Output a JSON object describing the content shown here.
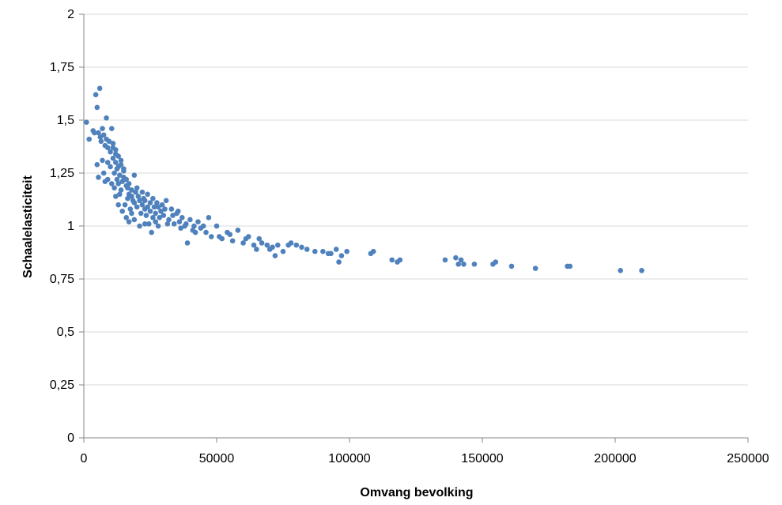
{
  "chart_data": {
    "type": "scatter",
    "title": "",
    "xlabel": "Omvang  bevolking",
    "ylabel": "Schaalelasticiteit",
    "xlim": [
      0,
      250000
    ],
    "ylim": [
      0,
      2
    ],
    "x_ticks": [
      0,
      50000,
      100000,
      150000,
      200000,
      250000
    ],
    "x_tick_labels": [
      "0",
      "50000",
      "100000",
      "150000",
      "200000",
      "250000"
    ],
    "y_ticks": [
      0,
      0.25,
      0.5,
      0.75,
      1,
      1.25,
      1.5,
      1.75,
      2
    ],
    "y_tick_labels": [
      "0",
      "0,25",
      "0,5",
      "0,75",
      "1",
      "1,25",
      "1,5",
      "1,75",
      "2"
    ],
    "grid": "horizontal",
    "legend": "none",
    "marker_color": "#4f81bd",
    "series": [
      {
        "points": [
          [
            1000,
            1.49
          ],
          [
            2000,
            1.41
          ],
          [
            4000,
            1.44
          ],
          [
            4500,
            1.62
          ],
          [
            5000,
            1.56
          ],
          [
            6000,
            1.65
          ],
          [
            6200,
            1.42
          ],
          [
            7000,
            1.46
          ],
          [
            8500,
            1.51
          ],
          [
            9000,
            1.37
          ],
          [
            10500,
            1.46
          ],
          [
            5000,
            1.29
          ],
          [
            5500,
            1.23
          ],
          [
            7000,
            1.31
          ],
          [
            8000,
            1.21
          ],
          [
            11000,
            1.37
          ],
          [
            12000,
            1.34
          ],
          [
            9000,
            1.3
          ],
          [
            10000,
            1.28
          ],
          [
            11500,
            1.25
          ],
          [
            12500,
            1.22
          ],
          [
            13000,
            1.2
          ],
          [
            14000,
            1.17
          ],
          [
            15000,
            1.23
          ],
          [
            16000,
            1.19
          ],
          [
            17000,
            1.15
          ],
          [
            18000,
            1.14
          ],
          [
            19000,
            1.24
          ],
          [
            20000,
            1.18
          ],
          [
            21000,
            1.12
          ],
          [
            22000,
            1.1
          ],
          [
            23000,
            1.08
          ],
          [
            24000,
            1.15
          ],
          [
            25000,
            1.11
          ],
          [
            26000,
            1.13
          ],
          [
            27000,
            1.06
          ],
          [
            28000,
            1.09
          ],
          [
            29000,
            1.07
          ],
          [
            30000,
            1.05
          ],
          [
            31000,
            1.12
          ],
          [
            32000,
            1.03
          ],
          [
            33000,
            1.08
          ],
          [
            34000,
            1.01
          ],
          [
            35000,
            1.06
          ],
          [
            36000,
            1.02
          ],
          [
            37000,
            1.04
          ],
          [
            38000,
            1.0
          ],
          [
            39000,
            0.92
          ],
          [
            40000,
            1.03
          ],
          [
            41000,
            0.98
          ],
          [
            42000,
            0.97
          ],
          [
            43000,
            1.02
          ],
          [
            44000,
            0.99
          ],
          [
            45000,
            1.0
          ],
          [
            46000,
            0.97
          ],
          [
            47000,
            1.04
          ],
          [
            48000,
            0.95
          ],
          [
            50000,
            1.0
          ],
          [
            51000,
            0.95
          ],
          [
            52000,
            0.94
          ],
          [
            54000,
            0.97
          ],
          [
            55000,
            0.96
          ],
          [
            56000,
            0.93
          ],
          [
            58000,
            0.98
          ],
          [
            60000,
            0.92
          ],
          [
            61000,
            0.94
          ],
          [
            62000,
            0.95
          ],
          [
            64000,
            0.91
          ],
          [
            65000,
            0.89
          ],
          [
            66000,
            0.94
          ],
          [
            67000,
            0.92
          ],
          [
            69000,
            0.91
          ],
          [
            70000,
            0.89
          ],
          [
            71000,
            0.9
          ],
          [
            72000,
            0.86
          ],
          [
            73000,
            0.91
          ],
          [
            75000,
            0.88
          ],
          [
            77000,
            0.91
          ],
          [
            78000,
            0.92
          ],
          [
            80000,
            0.91
          ],
          [
            82000,
            0.9
          ],
          [
            84000,
            0.89
          ],
          [
            87000,
            0.88
          ],
          [
            90000,
            0.88
          ],
          [
            92000,
            0.87
          ],
          [
            93000,
            0.87
          ],
          [
            95000,
            0.89
          ],
          [
            96000,
            0.83
          ],
          [
            97000,
            0.86
          ],
          [
            99000,
            0.88
          ],
          [
            108000,
            0.87
          ],
          [
            109000,
            0.88
          ],
          [
            116000,
            0.84
          ],
          [
            118000,
            0.83
          ],
          [
            119000,
            0.84
          ],
          [
            136000,
            0.84
          ],
          [
            140000,
            0.85
          ],
          [
            141000,
            0.82
          ],
          [
            142000,
            0.84
          ],
          [
            143000,
            0.82
          ],
          [
            147000,
            0.82
          ],
          [
            154000,
            0.82
          ],
          [
            155000,
            0.83
          ],
          [
            161000,
            0.81
          ],
          [
            170000,
            0.8
          ],
          [
            182000,
            0.81
          ],
          [
            183000,
            0.81
          ],
          [
            202000,
            0.79
          ],
          [
            210000,
            0.79
          ],
          [
            8000,
            1.38
          ],
          [
            9500,
            1.4
          ],
          [
            10000,
            1.35
          ],
          [
            11000,
            1.32
          ],
          [
            12000,
            1.3
          ],
          [
            13000,
            1.28
          ],
          [
            14000,
            1.31
          ],
          [
            15000,
            1.26
          ],
          [
            16000,
            1.22
          ],
          [
            13500,
            1.15
          ],
          [
            15500,
            1.1
          ],
          [
            17500,
            1.08
          ],
          [
            18500,
            1.12
          ],
          [
            19500,
            1.16
          ],
          [
            20500,
            1.14
          ],
          [
            21500,
            1.06
          ],
          [
            22500,
            1.13
          ],
          [
            23500,
            1.05
          ],
          [
            24500,
            1.01
          ],
          [
            25500,
            0.97
          ],
          [
            26500,
            1.09
          ],
          [
            27500,
            1.11
          ],
          [
            28500,
            1.04
          ],
          [
            29500,
            1.1
          ],
          [
            30500,
            1.08
          ],
          [
            31500,
            1.01
          ],
          [
            33500,
            1.05
          ],
          [
            35500,
            1.07
          ],
          [
            7500,
            1.25
          ],
          [
            9000,
            1.22
          ],
          [
            10500,
            1.2
          ],
          [
            11500,
            1.18
          ],
          [
            12500,
            1.27
          ],
          [
            13500,
            1.24
          ],
          [
            14500,
            1.21
          ],
          [
            16500,
            1.18
          ],
          [
            17000,
            1.2
          ],
          [
            18000,
            1.17
          ],
          [
            19000,
            1.11
          ],
          [
            20000,
            1.09
          ],
          [
            6500,
            1.4
          ],
          [
            7500,
            1.43
          ],
          [
            8500,
            1.41
          ],
          [
            3500,
            1.45
          ],
          [
            5500,
            1.44
          ],
          [
            11000,
            1.39
          ],
          [
            12000,
            1.36
          ],
          [
            13000,
            1.33
          ],
          [
            14000,
            1.29
          ],
          [
            15000,
            1.27
          ],
          [
            22000,
            1.16
          ],
          [
            23000,
            1.12
          ],
          [
            24000,
            1.09
          ],
          [
            25000,
            1.07
          ],
          [
            26000,
            1.04
          ],
          [
            27000,
            1.02
          ],
          [
            28000,
            1.0
          ],
          [
            36500,
            0.99
          ],
          [
            38500,
            1.01
          ],
          [
            41500,
            1.0
          ],
          [
            16000,
            1.04
          ],
          [
            17000,
            1.02
          ],
          [
            18000,
            1.06
          ],
          [
            19000,
            1.03
          ],
          [
            21000,
            1.0
          ],
          [
            23000,
            1.01
          ],
          [
            12000,
            1.14
          ],
          [
            13000,
            1.1
          ],
          [
            14500,
            1.07
          ],
          [
            16500,
            1.13
          ]
        ]
      }
    ]
  }
}
